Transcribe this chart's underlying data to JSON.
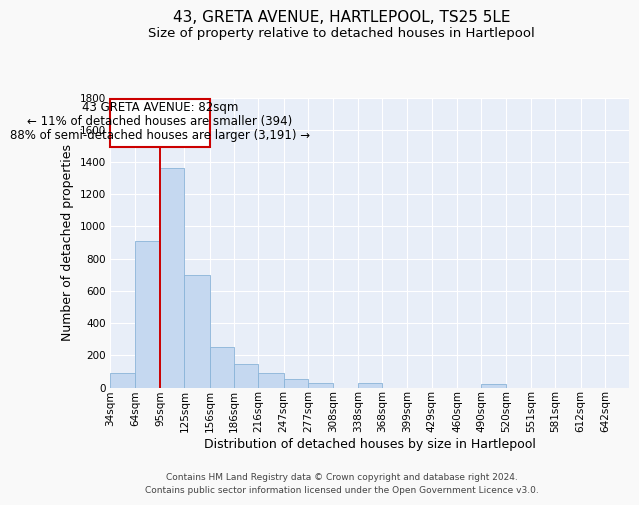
{
  "title": "43, GRETA AVENUE, HARTLEPOOL, TS25 5LE",
  "subtitle": "Size of property relative to detached houses in Hartlepool",
  "xlabel": "Distribution of detached houses by size in Hartlepool",
  "ylabel": "Number of detached properties",
  "bar_color": "#c5d8f0",
  "bar_edge_color": "#8ab4d8",
  "background_color": "#e8eef8",
  "grid_color": "#ffffff",
  "ylim": [
    0,
    1800
  ],
  "yticks": [
    0,
    200,
    400,
    600,
    800,
    1000,
    1200,
    1400,
    1600,
    1800
  ],
  "bin_labels": [
    "34sqm",
    "64sqm",
    "95sqm",
    "125sqm",
    "156sqm",
    "186sqm",
    "216sqm",
    "247sqm",
    "277sqm",
    "308sqm",
    "338sqm",
    "368sqm",
    "399sqm",
    "429sqm",
    "460sqm",
    "490sqm",
    "520sqm",
    "551sqm",
    "581sqm",
    "612sqm",
    "642sqm"
  ],
  "bar_heights": [
    90,
    910,
    1360,
    700,
    250,
    145,
    90,
    55,
    30,
    0,
    25,
    0,
    0,
    0,
    0,
    20,
    0,
    0,
    0,
    0,
    0
  ],
  "property_line_label": "43 GRETA AVENUE: 82sqm",
  "annotation_line1": "← 11% of detached houses are smaller (394)",
  "annotation_line2": "88% of semi-detached houses are larger (3,191) →",
  "vline_color": "#cc0000",
  "box_edge_color": "#cc0000",
  "footer_line1": "Contains HM Land Registry data © Crown copyright and database right 2024.",
  "footer_line2": "Contains public sector information licensed under the Open Government Licence v3.0.",
  "title_fontsize": 11,
  "subtitle_fontsize": 9.5,
  "axis_label_fontsize": 9,
  "tick_fontsize": 7.5,
  "annotation_fontsize": 8.5,
  "footer_fontsize": 6.5
}
